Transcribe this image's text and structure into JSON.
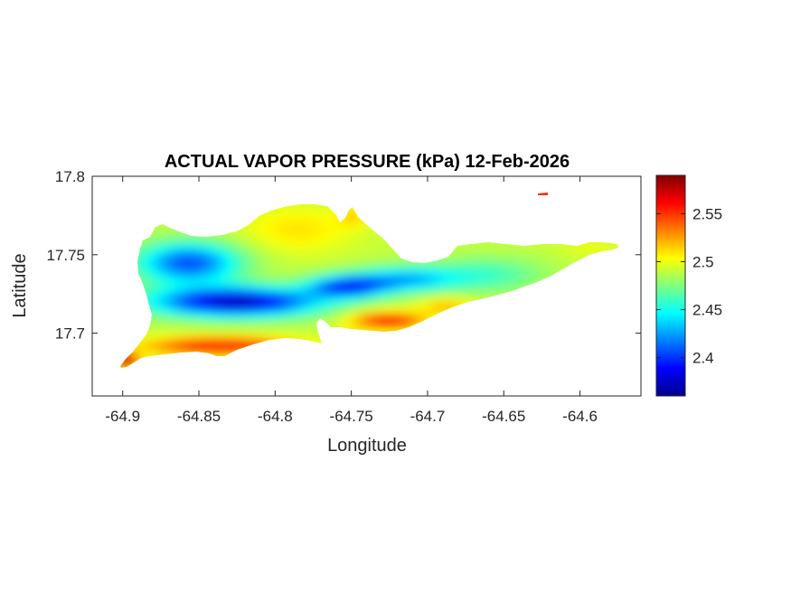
{
  "figure": {
    "title": "ACTUAL VAPOR PRESSURE (kPa) 12-Feb-2026",
    "xlabel": "Longitude",
    "ylabel": "Latitude"
  },
  "chart_data": {
    "type": "heatmap",
    "title": "ACTUAL VAPOR PRESSURE (kPa) 12-Feb-2026",
    "xlabel": "Longitude",
    "ylabel": "Latitude",
    "xlim": [
      -64.92,
      -64.56
    ],
    "ylim": [
      17.66,
      17.8
    ],
    "x_ticks": [
      -64.9,
      -64.85,
      -64.8,
      -64.75,
      -64.7,
      -64.65,
      -64.6
    ],
    "x_tick_labels": [
      "-64.9",
      "-64.85",
      "-64.8",
      "-64.75",
      "-64.7",
      "-64.65",
      "-64.6"
    ],
    "y_ticks": [
      17.7,
      17.75,
      17.8
    ],
    "y_tick_labels": [
      "17.7",
      "17.75",
      "17.8"
    ],
    "colorbar": {
      "colormap": "jet",
      "range": [
        2.36,
        2.59
      ],
      "ticks": [
        2.4,
        2.45,
        2.5,
        2.55
      ],
      "tick_labels": [
        "2.4",
        "2.45",
        "2.5",
        "2.55"
      ]
    },
    "grid": false
  }
}
